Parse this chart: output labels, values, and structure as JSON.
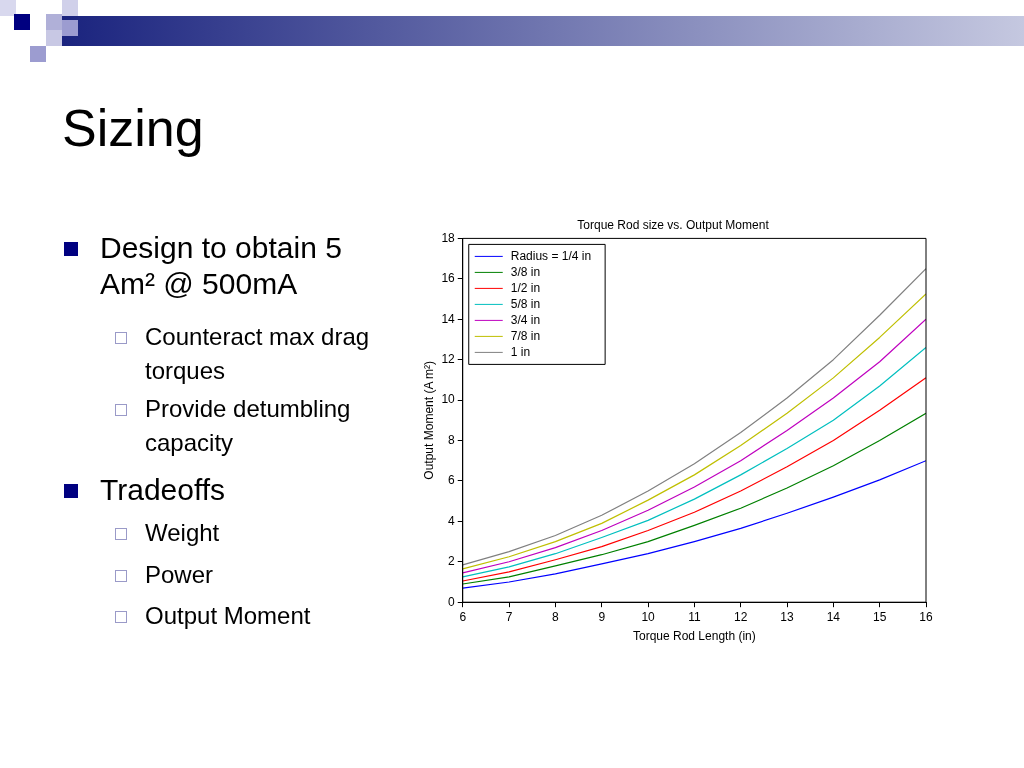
{
  "chart_data": [
    {
      "type": "other",
      "title": "Sizing",
      "annotations": [
        "Design to obtain 5 Am² @ 500mA",
        "Counteract max drag torques",
        "Provide detumbling capacity",
        "Tradeoffs",
        "Weight",
        "Power",
        "Output Moment"
      ]
    },
    {
      "type": "line",
      "title": "Torque Rod size vs. Output Moment",
      "xlabel": "Torque Rod Length (in)",
      "ylabel": "Output Moment (A m²)",
      "x": [
        6,
        7,
        8,
        9,
        10,
        11,
        12,
        13,
        14,
        15,
        16
      ],
      "xlim": [
        6,
        16
      ],
      "xticks": [
        6,
        7,
        8,
        9,
        10,
        11,
        12,
        13,
        14,
        15,
        16
      ],
      "ylim": [
        0,
        18
      ],
      "yticks": [
        0,
        2,
        4,
        6,
        8,
        10,
        12,
        14,
        16,
        18
      ],
      "grid": false,
      "legend": "top left",
      "marker": "none",
      "line_style": "solid",
      "series": [
        {
          "name": "Radius = 1/4 in",
          "color": "#0000ff",
          "values": [
            0.7,
            1.0,
            1.4,
            1.9,
            2.4,
            3.0,
            3.65,
            4.4,
            5.2,
            6.05,
            7.0
          ]
        },
        {
          "name": "3/8 in",
          "color": "#008000",
          "values": [
            0.9,
            1.25,
            1.8,
            2.35,
            3.0,
            3.8,
            4.65,
            5.65,
            6.75,
            8.0,
            9.35
          ]
        },
        {
          "name": "1/2 in",
          "color": "#ff0000",
          "values": [
            1.05,
            1.5,
            2.1,
            2.75,
            3.55,
            4.45,
            5.5,
            6.7,
            8.0,
            9.5,
            11.1
          ]
        },
        {
          "name": "5/8 in",
          "color": "#00bfbf",
          "values": [
            1.25,
            1.75,
            2.4,
            3.2,
            4.05,
            5.1,
            6.3,
            7.6,
            9.0,
            10.7,
            12.6
          ]
        },
        {
          "name": "3/4 in",
          "color": "#bf00bf",
          "values": [
            1.45,
            2.0,
            2.7,
            3.55,
            4.55,
            5.7,
            7.0,
            8.5,
            10.1,
            11.9,
            14.0
          ]
        },
        {
          "name": "7/8 in",
          "color": "#bfbf00",
          "values": [
            1.65,
            2.25,
            3.0,
            3.9,
            5.05,
            6.3,
            7.75,
            9.35,
            11.1,
            13.1,
            15.25
          ]
        },
        {
          "name": "1 in",
          "color": "#808080",
          "values": [
            1.85,
            2.5,
            3.3,
            4.3,
            5.5,
            6.85,
            8.4,
            10.1,
            12.0,
            14.2,
            16.5
          ]
        }
      ]
    }
  ]
}
